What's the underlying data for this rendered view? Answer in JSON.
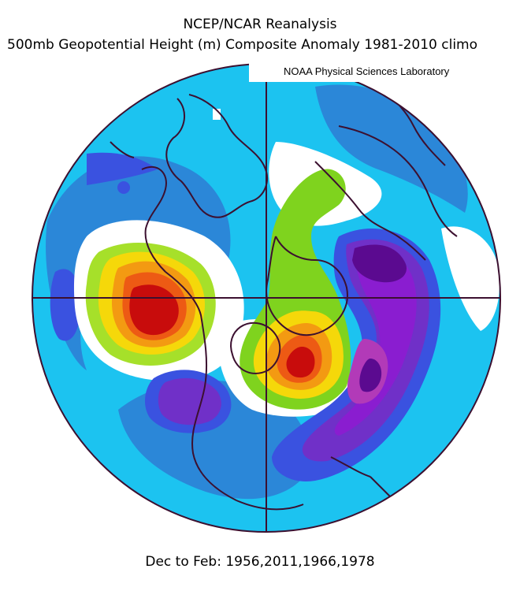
{
  "header": {
    "title": "NCEP/NCAR Reanalysis",
    "subtitle": "500mb Geopotential Height (m) Composite Anomaly 1981-2010 climo",
    "credit": "NOAA Physical Sciences Laboratory"
  },
  "footer": {
    "period": "Dec to Feb: 1956,2011,1966,1978"
  },
  "map": {
    "projection": "north polar stereographic",
    "variable": "500mb geopotential height anomaly",
    "palette": {
      "background_ocean": "#1cc3f0",
      "blue": "#2b87d8",
      "deep_blue": "#3a52e0",
      "purple": "#7030c8",
      "violet": "#8a1dd0",
      "magenta": "#b23ab8",
      "dark_purple": "#5b0a90",
      "neutral": "#ffffff",
      "light_green": "#a6e02a",
      "green": "#7fd31e",
      "yellow": "#f5d80a",
      "orange": "#f39a12",
      "red_orange": "#ed5a14",
      "red": "#c80c0c",
      "coastline": "#3c1030"
    }
  }
}
